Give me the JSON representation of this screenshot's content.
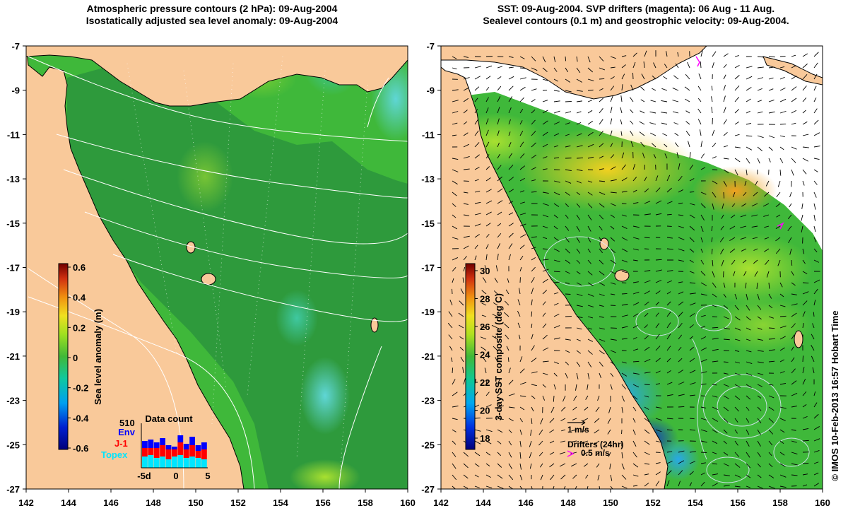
{
  "left_map": {
    "title_line1": "Atmospheric pressure contours (2 hPa): 09-Aug-2004",
    "title_line2": "Isostatically adjusted sea level anomaly: 09-Aug-2004",
    "x_ticks": [
      "142",
      "144",
      "146",
      "148",
      "150",
      "152",
      "154",
      "156",
      "158",
      "160"
    ],
    "y_ticks": [
      "-7",
      "-9",
      "-11",
      "-13",
      "-15",
      "-17",
      "-19",
      "-21",
      "-23",
      "-25",
      "-27"
    ],
    "colorbar": {
      "label": "Sea level anomaly (m)",
      "ticks": [
        "0.6",
        "0.4",
        "0.2",
        "0",
        "-0.2",
        "-0.4",
        "-0.6"
      ],
      "range": [
        -0.6,
        0.6
      ]
    },
    "data_count": {
      "title": "Data count",
      "max_label": "510",
      "legend": [
        {
          "name": "Env",
          "color": "#0000ff"
        },
        {
          "name": "J-1",
          "color": "#ff0000"
        },
        {
          "name": "Topex",
          "color": "#00e5ff"
        }
      ],
      "x_ticks": [
        "-5d",
        "0",
        "5"
      ]
    }
  },
  "right_map": {
    "title_line1": "SST: 09-Aug-2004. SVP drifters (magenta): 06 Aug - 11 Aug.",
    "title_line2": "Sealevel contours (0.1 m) and geostrophic velocity: 09-Aug-2004.",
    "x_ticks": [
      "142",
      "144",
      "146",
      "148",
      "150",
      "152",
      "154",
      "156",
      "158",
      "160"
    ],
    "y_ticks": [
      "-7",
      "-9",
      "-11",
      "-13",
      "-15",
      "-17",
      "-19",
      "-21",
      "-23",
      "-25",
      "-27"
    ],
    "colorbar": {
      "label": "3-day SST composite (deg C)",
      "ticks": [
        "30",
        "28",
        "26",
        "24",
        "22",
        "20",
        "18"
      ],
      "range": [
        17,
        30.5
      ]
    },
    "vector_scale_label": "1 m/s",
    "drifters_label": "Drifters (24hr)",
    "drifters_speed_label": "0.5 m/s"
  },
  "credit": "© IMOS 10-Feb-2013 16:57 Hobart Time",
  "colors": {
    "land": "#f9c99a",
    "ocean_green": "#3fb83a",
    "ocean_dark_green": "#2e9a3c",
    "coast": "#000000",
    "contour": "#ffffff",
    "drifter": "#ff00ff"
  }
}
